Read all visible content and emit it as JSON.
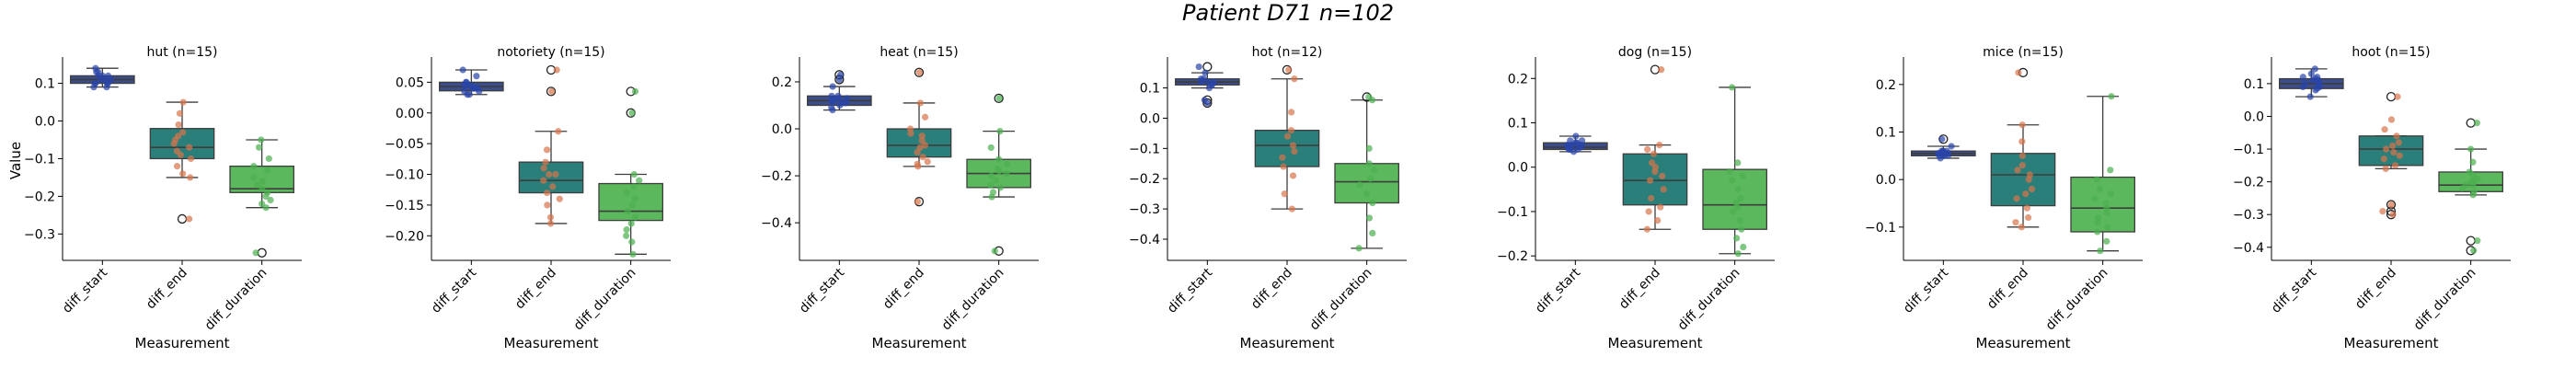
{
  "title": "Patient D71 n=102",
  "colors": {
    "diff_start": "#3b4d8a",
    "diff_end": "#2a7f7a",
    "diff_duration": "#5cb85c",
    "jitter_start": "#2a45a8",
    "jitter_end": "#d7734a",
    "jitter_duration": "#4caf50"
  },
  "chart_data": [
    {
      "type": "box",
      "title": "hut (n=15)",
      "xlabel": "Measurement",
      "ylabel": "Value",
      "categories": [
        "diff_start",
        "diff_end",
        "diff_duration"
      ],
      "ylim": [
        -0.37,
        0.16
      ],
      "yticks": [
        0.1,
        0.0,
        -0.1,
        -0.2,
        -0.3
      ],
      "boxes": [
        {
          "q1": 0.1,
          "median": 0.11,
          "q3": 0.12,
          "whislo": 0.09,
          "whishi": 0.14,
          "fliers": []
        },
        {
          "q1": -0.1,
          "median": -0.07,
          "q3": -0.02,
          "whislo": -0.15,
          "whishi": 0.05,
          "fliers": [
            -0.26
          ]
        },
        {
          "q1": -0.19,
          "median": -0.18,
          "q3": -0.12,
          "whislo": -0.23,
          "whishi": -0.05,
          "fliers": [
            -0.35
          ]
        }
      ],
      "points": [
        [
          0.09,
          0.1,
          0.11,
          0.12,
          0.13,
          0.1,
          0.14,
          0.11,
          0.12,
          0.1,
          0.09,
          0.13,
          0.11,
          0.12,
          0.1
        ],
        [
          0.05,
          0.02,
          -0.01,
          -0.03,
          -0.05,
          -0.06,
          -0.07,
          -0.08,
          -0.09,
          -0.1,
          -0.12,
          -0.14,
          -0.15,
          -0.26,
          -0.04
        ],
        [
          -0.05,
          -0.07,
          -0.1,
          -0.12,
          -0.13,
          -0.15,
          -0.16,
          -0.17,
          -0.18,
          -0.19,
          -0.2,
          -0.21,
          -0.22,
          -0.23,
          -0.35
        ]
      ]
    },
    {
      "type": "box",
      "title": "notoriety (n=15)",
      "xlabel": "Measurement",
      "ylabel": "",
      "categories": [
        "diff_start",
        "diff_end",
        "diff_duration"
      ],
      "ylim": [
        -0.24,
        0.085
      ],
      "yticks": [
        0.05,
        0.0,
        -0.05,
        -0.1,
        -0.15,
        -0.2
      ],
      "boxes": [
        {
          "q1": 0.036,
          "median": 0.043,
          "q3": 0.05,
          "whislo": 0.03,
          "whishi": 0.07,
          "fliers": []
        },
        {
          "q1": -0.13,
          "median": -0.11,
          "q3": -0.08,
          "whislo": -0.18,
          "whishi": -0.03,
          "fliers": [
            0.07,
            0.035
          ]
        },
        {
          "q1": -0.175,
          "median": -0.16,
          "q3": -0.115,
          "whislo": -0.23,
          "whishi": -0.1,
          "fliers": [
            0.035,
            0.0
          ]
        }
      ],
      "points": [
        [
          0.03,
          0.035,
          0.04,
          0.045,
          0.05,
          0.04,
          0.06,
          0.07,
          0.035,
          0.045,
          0.04,
          0.05,
          0.03,
          0.04,
          0.045
        ],
        [
          0.07,
          0.035,
          -0.03,
          -0.06,
          -0.08,
          -0.09,
          -0.1,
          -0.11,
          -0.12,
          -0.13,
          -0.14,
          -0.15,
          -0.17,
          -0.18,
          -0.1
        ],
        [
          0.035,
          0.0,
          -0.1,
          -0.11,
          -0.12,
          -0.13,
          -0.14,
          -0.15,
          -0.16,
          -0.17,
          -0.18,
          -0.19,
          -0.2,
          -0.21,
          -0.23
        ]
      ]
    },
    {
      "type": "box",
      "title": "heat (n=15)",
      "xlabel": "Measurement",
      "ylabel": "",
      "categories": [
        "diff_start",
        "diff_end",
        "diff_duration"
      ],
      "ylim": [
        -0.56,
        0.29
      ],
      "yticks": [
        0.2,
        0.0,
        -0.2,
        -0.4
      ],
      "boxes": [
        {
          "q1": 0.1,
          "median": 0.12,
          "q3": 0.14,
          "whislo": 0.08,
          "whishi": 0.18,
          "fliers": [
            0.21,
            0.23
          ]
        },
        {
          "q1": -0.12,
          "median": -0.07,
          "q3": 0.0,
          "whislo": -0.16,
          "whishi": 0.11,
          "fliers": [
            0.24,
            -0.31
          ]
        },
        {
          "q1": -0.25,
          "median": -0.19,
          "q3": -0.13,
          "whislo": -0.29,
          "whishi": -0.01,
          "fliers": [
            0.13,
            -0.52
          ]
        }
      ],
      "points": [
        [
          0.21,
          0.23,
          0.18,
          0.14,
          0.13,
          0.12,
          0.12,
          0.11,
          0.1,
          0.13,
          0.11,
          0.09,
          0.08,
          0.12,
          0.14
        ],
        [
          0.24,
          0.11,
          0.05,
          0.0,
          -0.03,
          -0.05,
          -0.07,
          -0.08,
          -0.1,
          -0.12,
          -0.14,
          -0.15,
          -0.16,
          -0.31,
          -0.02
        ],
        [
          0.13,
          -0.01,
          -0.08,
          -0.13,
          -0.15,
          -0.17,
          -0.19,
          -0.2,
          -0.22,
          -0.24,
          -0.25,
          -0.27,
          -0.29,
          -0.52,
          -0.18
        ]
      ]
    },
    {
      "type": "box",
      "title": "hot (n=12)",
      "xlabel": "Measurement",
      "ylabel": "",
      "categories": [
        "diff_start",
        "diff_end",
        "diff_duration"
      ],
      "ylim": [
        -0.47,
        0.19
      ],
      "yticks": [
        0.1,
        0.0,
        -0.1,
        -0.2,
        -0.3,
        -0.4
      ],
      "boxes": [
        {
          "q1": 0.11,
          "median": 0.12,
          "q3": 0.13,
          "whislo": 0.1,
          "whishi": 0.15,
          "fliers": [
            0.17,
            0.06,
            0.05
          ]
        },
        {
          "q1": -0.16,
          "median": -0.09,
          "q3": -0.04,
          "whislo": -0.3,
          "whishi": 0.13,
          "fliers": [
            0.16
          ]
        },
        {
          "q1": -0.28,
          "median": -0.21,
          "q3": -0.15,
          "whislo": -0.43,
          "whishi": 0.06,
          "fliers": [
            0.07
          ]
        }
      ],
      "points": [
        [
          0.17,
          0.15,
          0.13,
          0.12,
          0.12,
          0.11,
          0.12,
          0.1,
          0.11,
          0.06,
          0.05,
          0.13
        ],
        [
          0.16,
          0.13,
          0.02,
          -0.04,
          -0.06,
          -0.09,
          -0.11,
          -0.13,
          -0.16,
          -0.19,
          -0.25,
          -0.3
        ],
        [
          0.07,
          0.06,
          -0.1,
          -0.15,
          -0.17,
          -0.2,
          -0.22,
          -0.25,
          -0.28,
          -0.33,
          -0.38,
          -0.43
        ]
      ]
    },
    {
      "type": "box",
      "title": "dog (n=15)",
      "xlabel": "Measurement",
      "ylabel": "",
      "categories": [
        "diff_start",
        "diff_end",
        "diff_duration"
      ],
      "ylim": [
        -0.21,
        0.24
      ],
      "yticks": [
        0.2,
        0.1,
        0.0,
        -0.1,
        -0.2
      ],
      "boxes": [
        {
          "q1": 0.04,
          "median": 0.045,
          "q3": 0.055,
          "whislo": 0.035,
          "whishi": 0.07,
          "fliers": []
        },
        {
          "q1": -0.085,
          "median": -0.03,
          "q3": 0.03,
          "whislo": -0.14,
          "whishi": 0.05,
          "fliers": [
            0.22
          ]
        },
        {
          "q1": -0.14,
          "median": -0.085,
          "q3": -0.005,
          "whislo": -0.195,
          "whishi": 0.18,
          "fliers": []
        }
      ],
      "points": [
        [
          0.035,
          0.04,
          0.045,
          0.05,
          0.055,
          0.06,
          0.07,
          0.04,
          0.045,
          0.05,
          0.04,
          0.055,
          0.06,
          0.045,
          0.05
        ],
        [
          0.22,
          0.05,
          0.04,
          0.03,
          0.01,
          -0.01,
          -0.02,
          -0.03,
          -0.05,
          -0.07,
          -0.09,
          -0.1,
          -0.12,
          -0.14,
          0.0
        ],
        [
          0.18,
          0.01,
          -0.01,
          -0.03,
          -0.05,
          -0.07,
          -0.08,
          -0.09,
          -0.1,
          -0.12,
          -0.14,
          -0.16,
          -0.18,
          -0.195,
          -0.02
        ]
      ]
    },
    {
      "type": "box",
      "title": "mice (n=15)",
      "xlabel": "Measurement",
      "ylabel": "",
      "categories": [
        "diff_start",
        "diff_end",
        "diff_duration"
      ],
      "ylim": [
        -0.17,
        0.25
      ],
      "yticks": [
        0.2,
        0.1,
        0.0,
        -0.1
      ],
      "boxes": [
        {
          "q1": 0.05,
          "median": 0.055,
          "q3": 0.06,
          "whislo": 0.045,
          "whishi": 0.07,
          "fliers": [
            0.085
          ]
        },
        {
          "q1": -0.055,
          "median": 0.01,
          "q3": 0.055,
          "whislo": -0.1,
          "whishi": 0.115,
          "fliers": [
            0.225
          ]
        },
        {
          "q1": -0.11,
          "median": -0.06,
          "q3": 0.005,
          "whislo": -0.15,
          "whishi": 0.175,
          "fliers": []
        }
      ],
      "points": [
        [
          0.085,
          0.07,
          0.06,
          0.055,
          0.05,
          0.055,
          0.06,
          0.05,
          0.045,
          0.055,
          0.06,
          0.05,
          0.055,
          0.06,
          0.05
        ],
        [
          0.225,
          0.115,
          0.08,
          0.05,
          0.03,
          0.01,
          0.0,
          -0.02,
          -0.04,
          -0.06,
          -0.08,
          -0.09,
          -0.1,
          0.02,
          -0.03
        ],
        [
          0.175,
          0.02,
          0.0,
          -0.02,
          -0.04,
          -0.05,
          -0.06,
          -0.07,
          -0.08,
          -0.09,
          -0.1,
          -0.11,
          -0.13,
          -0.15,
          -0.03
        ]
      ]
    },
    {
      "type": "box",
      "title": "hoot (n=15)",
      "xlabel": "Measurement",
      "ylabel": "",
      "categories": [
        "diff_start",
        "diff_end",
        "diff_duration"
      ],
      "ylim": [
        -0.44,
        0.17
      ],
      "yticks": [
        0.1,
        0.0,
        -0.1,
        -0.2,
        -0.3,
        -0.4
      ],
      "boxes": [
        {
          "q1": 0.085,
          "median": 0.1,
          "q3": 0.115,
          "whislo": 0.06,
          "whishi": 0.145,
          "fliers": []
        },
        {
          "q1": -0.15,
          "median": -0.1,
          "q3": -0.06,
          "whislo": -0.16,
          "whishi": -0.06,
          "fliers": [
            0.06,
            -0.27,
            -0.29,
            -0.3
          ]
        },
        {
          "q1": -0.23,
          "median": -0.21,
          "q3": -0.17,
          "whislo": -0.24,
          "whishi": -0.1,
          "fliers": [
            -0.02,
            -0.38,
            -0.41
          ]
        }
      ],
      "points": [
        [
          0.145,
          0.13,
          0.12,
          0.11,
          0.1,
          0.1,
          0.09,
          0.085,
          0.08,
          0.06,
          0.11,
          0.12,
          0.1,
          0.09,
          0.115
        ],
        [
          0.06,
          -0.01,
          -0.04,
          -0.06,
          -0.08,
          -0.09,
          -0.1,
          -0.12,
          -0.13,
          -0.15,
          -0.16,
          -0.27,
          -0.29,
          -0.3,
          -0.11
        ],
        [
          -0.02,
          -0.1,
          -0.14,
          -0.17,
          -0.18,
          -0.19,
          -0.2,
          -0.21,
          -0.22,
          -0.23,
          -0.24,
          -0.38,
          -0.41,
          -0.2,
          -0.21
        ]
      ]
    }
  ]
}
